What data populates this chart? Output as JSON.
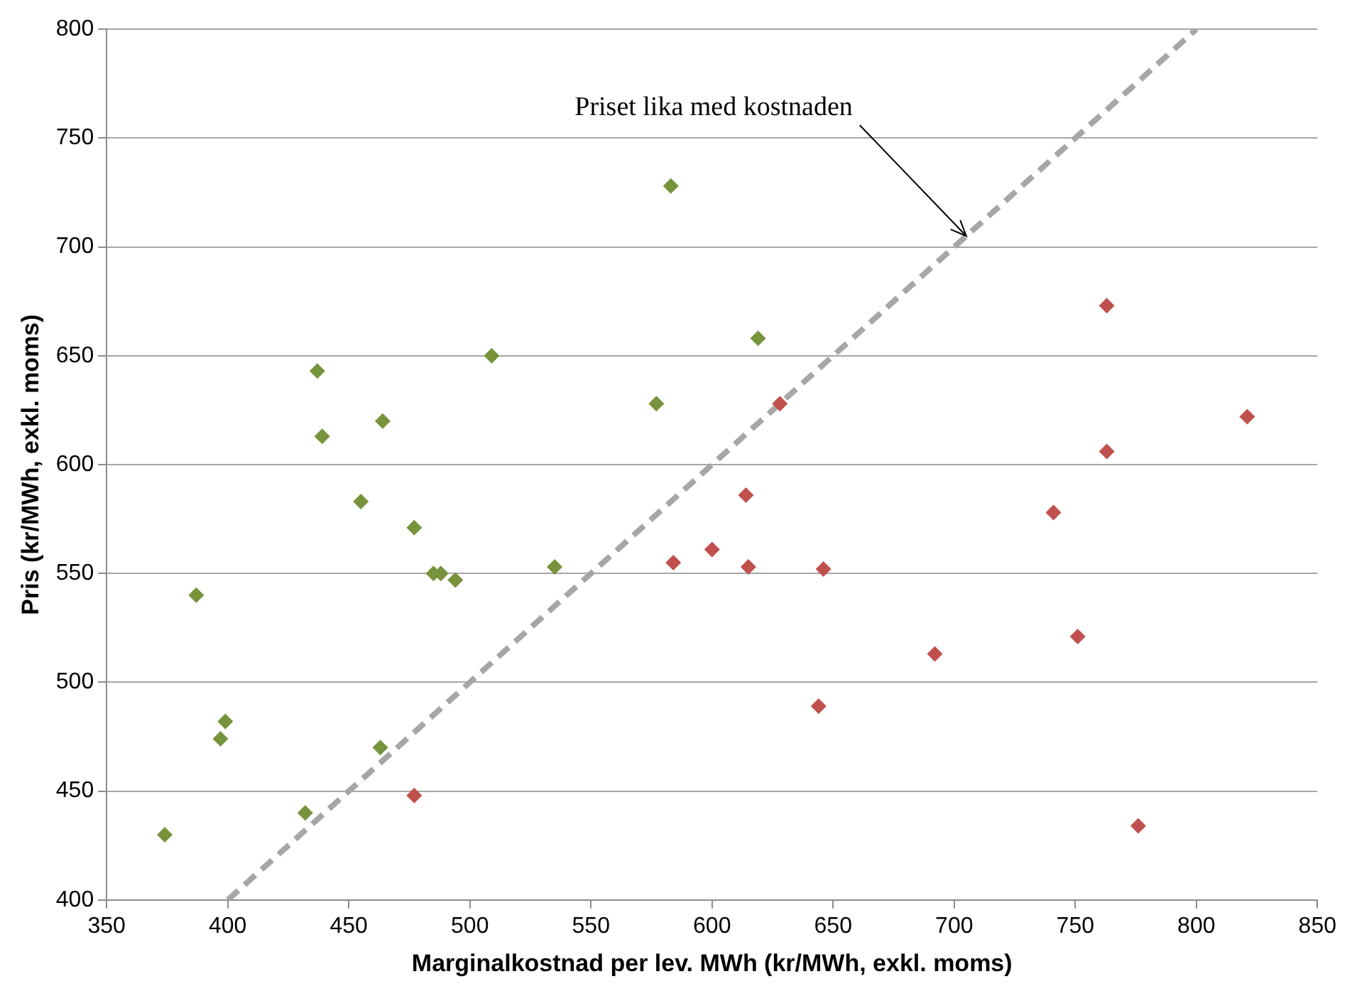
{
  "chart_data": {
    "type": "scatter",
    "xlabel": "Marginalkostnad per lev. MWh (kr/MWh, exkl. moms)",
    "ylabel": "Pris (kr/MWh, exkl. moms)",
    "xlim": [
      350,
      850
    ],
    "xticks": [
      350,
      400,
      450,
      500,
      550,
      600,
      650,
      700,
      750,
      800,
      850
    ],
    "ylim": [
      400,
      800
    ],
    "yticks": [
      400,
      450,
      500,
      550,
      600,
      650,
      700,
      750,
      800
    ],
    "grid": "y",
    "legend": false,
    "marker": "diamond",
    "annotations": [
      {
        "text": "Priset lika med kostnaden",
        "x": 705,
        "y": 705
      }
    ],
    "series": [
      {
        "color": "#77933c",
        "x": [
          374,
          387,
          397,
          399,
          432,
          437,
          439,
          455,
          464,
          463,
          477,
          485,
          488,
          494,
          509,
          535,
          577,
          583,
          619
        ],
        "values": [
          430,
          540,
          474,
          482,
          440,
          643,
          613,
          583,
          620,
          470,
          571,
          550,
          550,
          547,
          650,
          553,
          628,
          728,
          658
        ]
      },
      {
        "color": "#c0504d",
        "x": [
          477,
          584,
          600,
          614,
          615,
          628,
          646,
          644,
          692,
          741,
          751,
          763,
          763,
          776,
          821
        ],
        "values": [
          448,
          555,
          561,
          586,
          553,
          628,
          552,
          489,
          513,
          578,
          521,
          673,
          606,
          434,
          622
        ]
      },
      {
        "type": "line",
        "color": "#a6a6a6",
        "line_style": "dashed",
        "marker": "none",
        "x": [
          400,
          800
        ],
        "values": [
          400,
          800
        ]
      }
    ]
  }
}
